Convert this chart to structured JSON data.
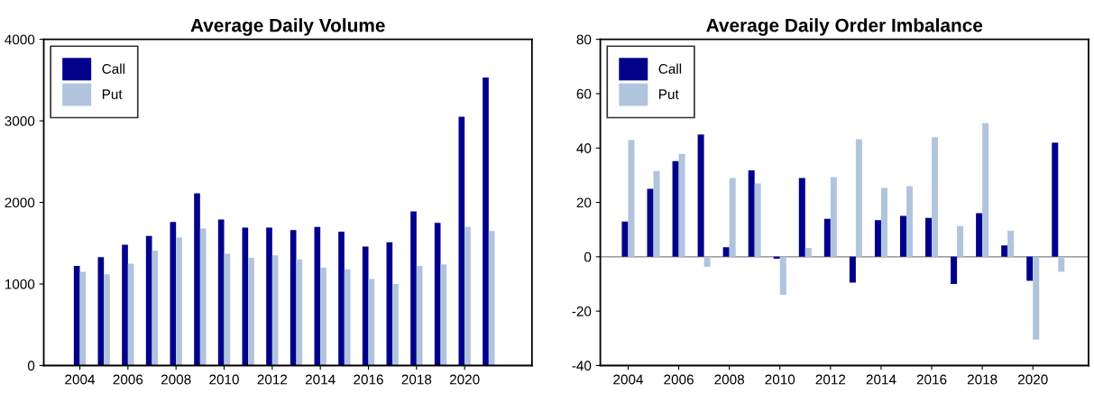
{
  "chart_data": [
    {
      "type": "bar",
      "title": "Average Daily Volume",
      "x": [
        2004,
        2005,
        2006,
        2007,
        2008,
        2009,
        2010,
        2011,
        2012,
        2013,
        2014,
        2015,
        2016,
        2017,
        2018,
        2019,
        2020,
        2021
      ],
      "series": [
        {
          "name": "Call",
          "color": "#00008b",
          "values": [
            1220,
            1330,
            1480,
            1590,
            1760,
            2110,
            1790,
            1690,
            1690,
            1660,
            1700,
            1640,
            1460,
            1510,
            1890,
            1750,
            3050,
            3530
          ]
        },
        {
          "name": "Put",
          "color": "#b0c4de",
          "values": [
            1150,
            1120,
            1250,
            1410,
            1570,
            1680,
            1370,
            1320,
            1350,
            1300,
            1200,
            1180,
            1060,
            1000,
            1220,
            1240,
            1700,
            1650
          ]
        }
      ],
      "xlim": [
        2002.5,
        2022.8
      ],
      "xticks": [
        2004,
        2006,
        2008,
        2010,
        2012,
        2014,
        2016,
        2018,
        2020
      ],
      "ylim": [
        0,
        4000
      ],
      "yticks": [
        0,
        1000,
        2000,
        3000,
        4000
      ],
      "legend": "top left",
      "grid": false
    },
    {
      "type": "bar",
      "title": "Average Daily Order Imbalance",
      "x": [
        2004,
        2005,
        2006,
        2007,
        2008,
        2009,
        2010,
        2011,
        2012,
        2013,
        2014,
        2015,
        2016,
        2017,
        2018,
        2019,
        2020,
        2021
      ],
      "series": [
        {
          "name": "Call",
          "color": "#00008b",
          "values": [
            13,
            25,
            35.2,
            45,
            3.5,
            31.8,
            -0.7,
            29,
            14,
            -9.5,
            13.5,
            15,
            14.3,
            -10,
            16,
            4.2,
            -8.8,
            42
          ]
        },
        {
          "name": "Put",
          "color": "#b0c4de",
          "values": [
            43,
            31.5,
            37.8,
            -3.7,
            29,
            27,
            -14,
            3.3,
            29.3,
            43.2,
            25.3,
            26,
            44,
            11.3,
            49.2,
            9.6,
            -30.5,
            -5.5
          ]
        }
      ],
      "xlim": [
        2002.9,
        2022.2
      ],
      "xticks": [
        2004,
        2006,
        2008,
        2010,
        2012,
        2014,
        2016,
        2018,
        2020
      ],
      "ylim": [
        -40,
        80
      ],
      "yticks": [
        -40,
        -20,
        0,
        20,
        40,
        60,
        80
      ],
      "legend": "top left",
      "grid": false,
      "ref_lines": [
        {
          "axis": "y",
          "value": 0,
          "color": "#808080"
        }
      ]
    }
  ]
}
